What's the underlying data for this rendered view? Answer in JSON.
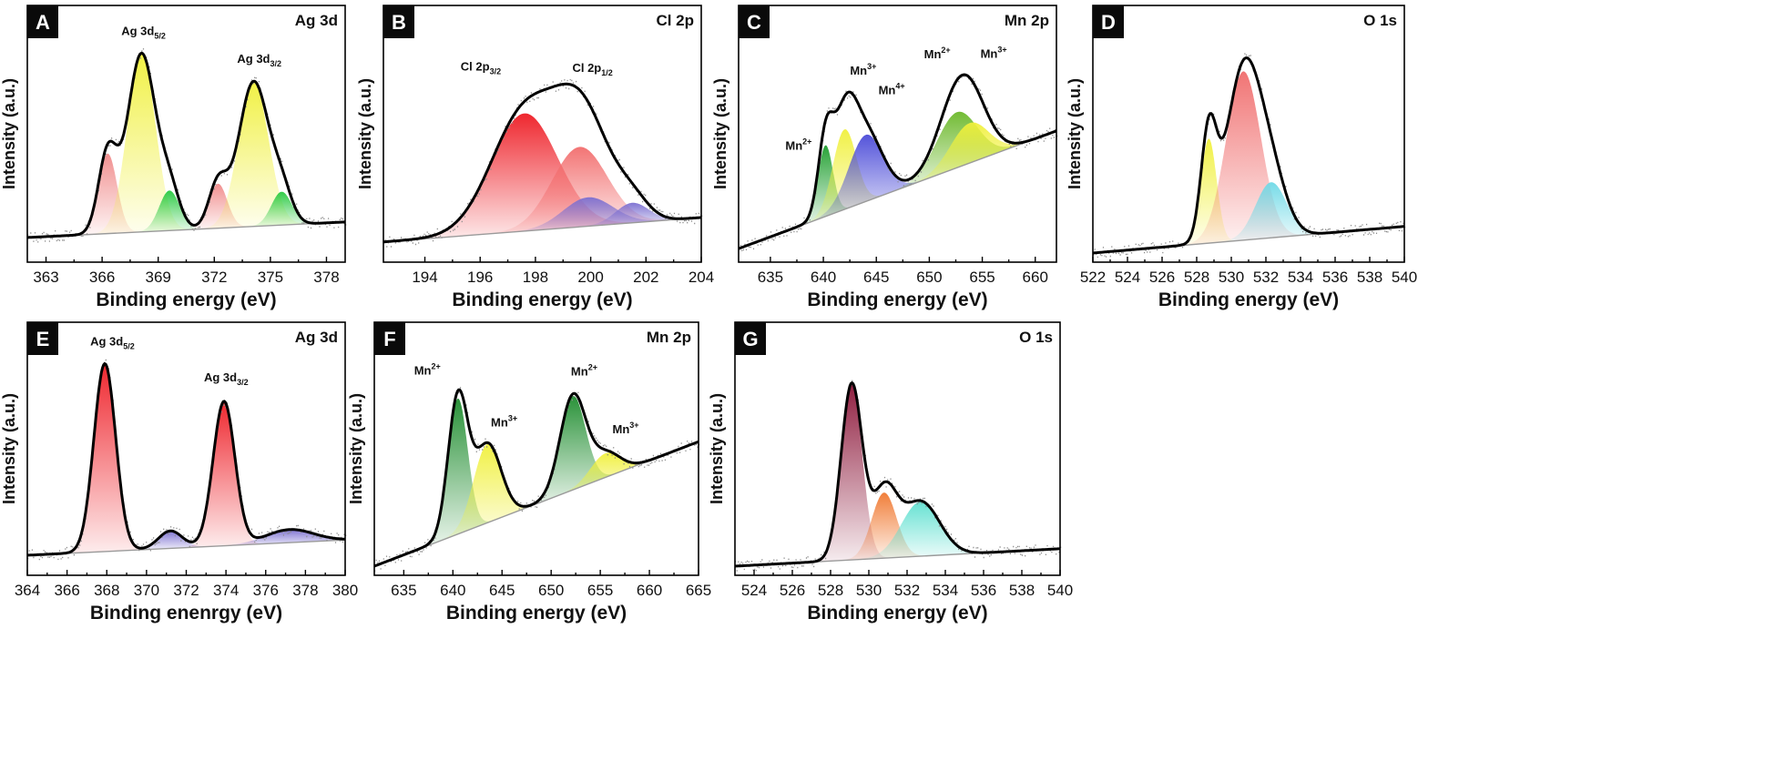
{
  "chart_data": [
    {
      "panel": "A",
      "element": "Ag 3d",
      "type": "area",
      "xlabel": "Binding energy (eV)",
      "ylabel": "Intensity (a.u.)",
      "xlim": [
        362,
        379
      ],
      "xticks": [
        363,
        366,
        369,
        372,
        375,
        378
      ],
      "ylim": [
        0,
        1.0
      ],
      "bg": [
        0.07,
        0.14
      ],
      "envelope": "#000000",
      "peaks": [
        {
          "center": 366.3,
          "height": 0.36,
          "width": 0.5,
          "color": "#f08a8a",
          "label": ""
        },
        {
          "center": 368.1,
          "height": 0.8,
          "width": 0.75,
          "color": "#f0f03c",
          "label": "Ag 3d",
          "sub": "5/2"
        },
        {
          "center": 369.6,
          "height": 0.18,
          "width": 0.55,
          "color": "#27c93f",
          "label": ""
        },
        {
          "center": 372.2,
          "height": 0.2,
          "width": 0.5,
          "color": "#f08a8a",
          "label": ""
        },
        {
          "center": 374.1,
          "height": 0.65,
          "width": 0.8,
          "color": "#f0f03c",
          "label": "Ag 3d",
          "sub": "3/2"
        },
        {
          "center": 375.6,
          "height": 0.15,
          "width": 0.55,
          "color": "#27c93f",
          "label": ""
        }
      ],
      "bg_color": "#9ee89e"
    },
    {
      "panel": "B",
      "element": "Cl 2p",
      "type": "area",
      "xlabel": "Binding energy (eV)",
      "ylabel": "Intensity (a.u.)",
      "xlim": [
        192.5,
        204
      ],
      "xticks": [
        194,
        196,
        198,
        200,
        202,
        204
      ],
      "ylim": [
        0,
        1.0
      ],
      "bg": [
        0.05,
        0.16
      ],
      "envelope": "#000000",
      "peaks": [
        {
          "center": 197.6,
          "height": 0.53,
          "width": 1.2,
          "color": "#ee1c24",
          "label": "Cl 2p",
          "sub": "3/2"
        },
        {
          "center": 199.6,
          "height": 0.36,
          "width": 1.0,
          "color": "#f26d6d",
          "label": "Cl 2p",
          "sub": "1/2"
        },
        {
          "center": 199.9,
          "height": 0.13,
          "width": 0.9,
          "color": "#7b6fd1",
          "label": ""
        },
        {
          "center": 201.5,
          "height": 0.09,
          "width": 0.6,
          "color": "#7b6fd1",
          "label": ""
        }
      ],
      "bg_color": "#b8b8ef"
    },
    {
      "panel": "C",
      "element": "Mn 2p",
      "type": "area",
      "xlabel": "Binding energy (eV)",
      "ylabel": "Intensity (a.u.)",
      "xlim": [
        632,
        662
      ],
      "xticks": [
        635,
        640,
        645,
        650,
        655,
        660
      ],
      "ylim": [
        0,
        1.0
      ],
      "bg": [
        0.02,
        0.55
      ],
      "envelope": "#000000",
      "peaks": [
        {
          "center": 640.2,
          "height": 0.32,
          "width": 0.7,
          "color": "#1e9e2e",
          "label": "Mn",
          "sup": "2+"
        },
        {
          "center": 642.0,
          "height": 0.36,
          "width": 1.1,
          "color": "#f0f03c",
          "label": "Mn",
          "sup": "3+"
        },
        {
          "center": 644.0,
          "height": 0.3,
          "width": 1.6,
          "color": "#4b4bd8",
          "label": "Mn",
          "sup": "4+"
        },
        {
          "center": 652.6,
          "height": 0.25,
          "width": 1.9,
          "color": "#6bb82a",
          "label": "Mn",
          "sup": "2+"
        },
        {
          "center": 653.8,
          "height": 0.18,
          "width": 1.8,
          "color": "#f0f03c",
          "label": "Mn",
          "sup": "3+"
        }
      ],
      "bg_color": "#5fb32a"
    },
    {
      "panel": "D",
      "element": "O 1s",
      "type": "area",
      "xlabel": "Binding energy (eV)",
      "ylabel": "Intensity (a.u.)",
      "xlim": [
        522,
        540
      ],
      "xticks": [
        522,
        524,
        526,
        528,
        530,
        532,
        534,
        536,
        538,
        540
      ],
      "ylim": [
        0,
        1.0
      ],
      "bg": [
        0.0,
        0.12
      ],
      "envelope": "#000000",
      "peaks": [
        {
          "center": 528.7,
          "height": 0.47,
          "width": 0.45,
          "color": "#f0f03c",
          "label": ""
        },
        {
          "center": 530.7,
          "height": 0.76,
          "width": 1.0,
          "color": "#f06d6d",
          "label": ""
        },
        {
          "center": 532.3,
          "height": 0.25,
          "width": 0.9,
          "color": "#6fd9e6",
          "label": ""
        }
      ],
      "bg_color": "#cfcfcf"
    },
    {
      "panel": "E",
      "element": "Ag 3d",
      "type": "area",
      "xlabel": "Binding enenrgy (eV)",
      "ylabel": "Intensity (a.u.)",
      "xlim": [
        364,
        380
      ],
      "xticks": [
        364,
        366,
        368,
        370,
        372,
        374,
        376,
        378,
        380
      ],
      "ylim": [
        0,
        1.0
      ],
      "bg": [
        0.05,
        0.12
      ],
      "envelope": "#000000",
      "peaks": [
        {
          "center": 367.9,
          "height": 0.86,
          "width": 0.55,
          "color": "#ee1c24",
          "label": "Ag 3d",
          "sub": "5/2"
        },
        {
          "center": 371.2,
          "height": 0.08,
          "width": 0.6,
          "color": "#7b6fd1",
          "label": ""
        },
        {
          "center": 373.9,
          "height": 0.66,
          "width": 0.55,
          "color": "#ee1c24",
          "label": "Ag 3d",
          "sub": "3/2"
        },
        {
          "center": 377.2,
          "height": 0.06,
          "width": 1.2,
          "color": "#7b6fd1",
          "label": ""
        }
      ],
      "bg_color": "#b8b8ef"
    },
    {
      "panel": "F",
      "element": "Mn 2p",
      "type": "area",
      "xlabel": "Binding energy (eV)",
      "ylabel": "Intensity (a.u.)",
      "xlim": [
        632,
        665
      ],
      "xticks": [
        635,
        640,
        645,
        650,
        655,
        660,
        665
      ],
      "ylim": [
        0,
        1.0
      ],
      "bg": [
        0.0,
        0.57
      ],
      "envelope": "#000000",
      "peaks": [
        {
          "center": 640.5,
          "height": 0.62,
          "width": 1.0,
          "color": "#1e8c2e",
          "label": "Mn",
          "sup": "2+"
        },
        {
          "center": 643.5,
          "height": 0.36,
          "width": 1.4,
          "color": "#f0f03c",
          "label": "Mn",
          "sup": "3+"
        },
        {
          "center": 652.2,
          "height": 0.43,
          "width": 1.3,
          "color": "#1e8c2e",
          "label": "Mn",
          "sup": "2+"
        },
        {
          "center": 655.5,
          "height": 0.11,
          "width": 1.5,
          "color": "#f0f03c",
          "label": "Mn",
          "sup": "3+"
        }
      ],
      "bg_color": "#e8e84a"
    },
    {
      "panel": "G",
      "element": "O 1s",
      "type": "area",
      "xlabel": "Binding energy (eV)",
      "ylabel": "Intensity (a.u.)",
      "xlim": [
        523,
        540
      ],
      "xticks": [
        524,
        526,
        528,
        530,
        532,
        534,
        536,
        538,
        540
      ],
      "ylim": [
        0,
        1.0
      ],
      "bg": [
        0.0,
        0.08
      ],
      "envelope": "#000000",
      "peaks": [
        {
          "center": 529.1,
          "height": 0.8,
          "width": 0.55,
          "color": "#8b1538",
          "label": ""
        },
        {
          "center": 530.8,
          "height": 0.3,
          "width": 0.65,
          "color": "#f07830",
          "label": ""
        },
        {
          "center": 532.7,
          "height": 0.25,
          "width": 1.0,
          "color": "#5fe0d0",
          "label": ""
        }
      ],
      "bg_color": "#cfcfcf"
    }
  ]
}
